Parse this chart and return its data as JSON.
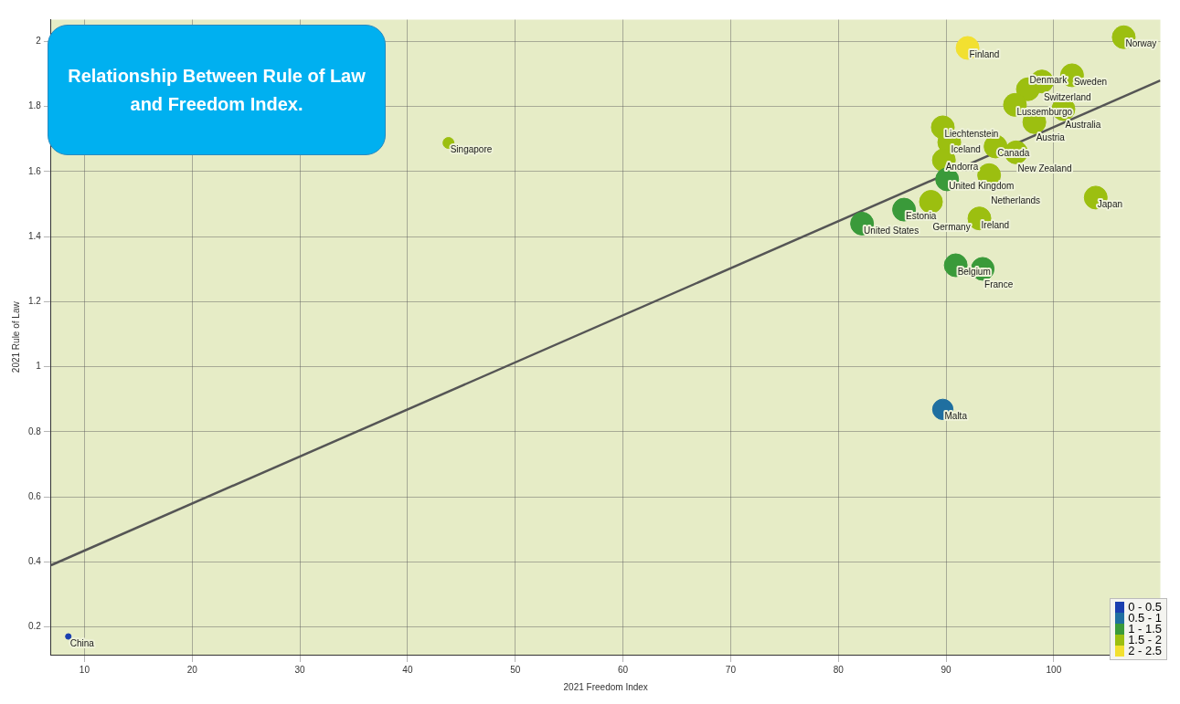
{
  "chart_data": {
    "type": "bubble",
    "title": "Relationship Between Rule of Law and Freedom Index.",
    "xlabel": "2021 Freedom Index",
    "ylabel": "2021 Rule of Law",
    "xlim": [
      6.9,
      109.9
    ],
    "ylim": [
      0.115,
      2.067
    ],
    "xticks": [
      10,
      20,
      30,
      40,
      50,
      60,
      70,
      80,
      90,
      100
    ],
    "yticks": [
      0.2,
      0.4,
      0.6,
      0.8,
      1,
      1.2,
      1.4,
      1.6,
      1.8,
      2
    ],
    "grid": true,
    "legend": "bottom right",
    "series": [
      {
        "name": "0 - 0.5",
        "color": "#1a3fb0",
        "x": [
          8.5
        ],
        "values": [
          0.171
        ],
        "sizes": [
          0.06
        ]
      },
      {
        "name": "0.5 - 1",
        "color": "#1f6fa0",
        "x": [
          89.7
        ],
        "values": [
          0.869
        ],
        "sizes": [
          0.8
        ]
      },
      {
        "name": "1 - 1.5",
        "color": "#3a9a3a",
        "x": [
          90.1,
          86.1,
          82.2,
          90.9,
          93.4
        ],
        "values": [
          1.576,
          1.483,
          1.44,
          1.312,
          1.301
        ],
        "sizes": [
          1,
          1,
          1,
          1,
          1
        ]
      },
      {
        "name": "1.5 - 2",
        "color": "#9cbf10",
        "x": [
          106.5,
          101.7,
          98.9,
          97.6,
          96.4,
          100.9,
          98.2,
          89.7,
          90.3,
          94.6,
          96.5,
          89.8,
          43.8,
          94.0,
          103.9,
          88.6,
          93.1
        ],
        "values": [
          2.013,
          1.896,
          1.877,
          1.853,
          1.805,
          1.792,
          1.752,
          1.736,
          1.69,
          1.677,
          1.659,
          1.635,
          1.688,
          1.589,
          1.52,
          1.507,
          1.456
        ],
        "sizes": [
          1,
          1,
          1,
          1,
          1,
          1,
          1,
          1,
          1,
          1,
          1,
          1,
          0.23,
          1,
          1,
          1,
          1
        ]
      },
      {
        "name": "2 - 2.5",
        "color": "#f2e030",
        "x": [
          92.0
        ],
        "values": [
          1.98
        ],
        "sizes": [
          1
        ]
      },
      {
        "type": "line",
        "color": "#555555",
        "x": [
          6.9,
          109.9
        ],
        "values": [
          0.39,
          1.88
        ]
      }
    ],
    "annotations": [
      {
        "text": "China",
        "x": 8.5,
        "y": 0.171
      },
      {
        "text": "Malta",
        "x": 89.7,
        "y": 0.869
      },
      {
        "text": "United Kingdom",
        "x": 90.1,
        "y": 1.576
      },
      {
        "text": "Estonia",
        "x": 86.1,
        "y": 1.483
      },
      {
        "text": "United States",
        "x": 82.2,
        "y": 1.44
      },
      {
        "text": "Belgium",
        "x": 90.9,
        "y": 1.312
      },
      {
        "text": "France",
        "x": 93.4,
        "y": 1.301
      },
      {
        "text": "Norway",
        "x": 106.5,
        "y": 2.013
      },
      {
        "text": "Sweden",
        "x": 101.7,
        "y": 1.896
      },
      {
        "text": "Switzerland",
        "x": 98.9,
        "y": 1.877
      },
      {
        "text": "Denmark",
        "x": 97.6,
        "y": 1.853
      },
      {
        "text": "Lussemburgo",
        "x": 96.4,
        "y": 1.805
      },
      {
        "text": "Australia",
        "x": 100.9,
        "y": 1.792
      },
      {
        "text": "Austria",
        "x": 98.2,
        "y": 1.752
      },
      {
        "text": "Liechtenstein",
        "x": 89.7,
        "y": 1.736
      },
      {
        "text": "Iceland",
        "x": 90.3,
        "y": 1.69
      },
      {
        "text": "Canada",
        "x": 94.6,
        "y": 1.677
      },
      {
        "text": "New Zealand",
        "x": 96.5,
        "y": 1.659
      },
      {
        "text": "Andorra",
        "x": 89.8,
        "y": 1.635
      },
      {
        "text": "Singapore",
        "x": 43.8,
        "y": 1.688
      },
      {
        "text": "Netherlands",
        "x": 94.0,
        "y": 1.589
      },
      {
        "text": "Japan",
        "x": 103.9,
        "y": 1.52
      },
      {
        "text": "Germany",
        "x": 88.6,
        "y": 1.507
      },
      {
        "text": "Ireland",
        "x": 93.1,
        "y": 1.456
      },
      {
        "text": "Finland",
        "x": 92.0,
        "y": 1.98
      }
    ]
  }
}
